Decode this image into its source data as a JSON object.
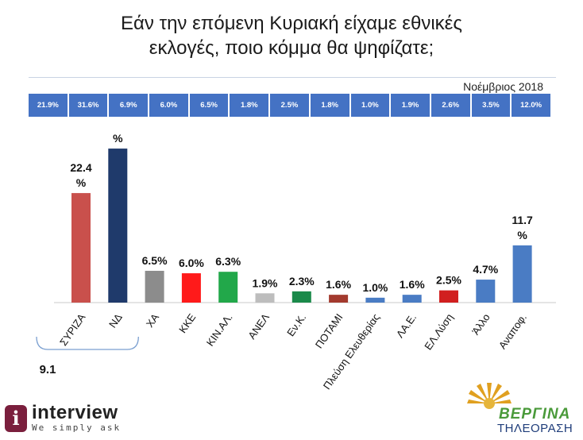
{
  "title_line1": "Εάν την επόμενη Κυριακή είχαμε εθνικές",
  "title_line2": "εκλογές, ποιο κόμμα θα ψηφίζατε;",
  "month": "Νοέμβριος 2018",
  "previous_results": [
    "21.9%",
    "31.6%",
    "6.9%",
    "6.0%",
    "6.5%",
    "1.8%",
    "2.5%",
    "1.8%",
    "1.0%",
    "1.9%",
    "2.6%",
    "3.5%",
    "12.0%"
  ],
  "chart_data": {
    "type": "bar",
    "categories": [
      "ΣΥΡΙΖΑ",
      "ΝΔ",
      "ΧΑ",
      "ΚΚΕ",
      "ΚΙΝ.ΑΛ.",
      "ΑΝΕΛ",
      "Εν.Κ.",
      "ΠΟΤΑΜΙ",
      "Πλεύση Ελευθερίας",
      "ΛΑ.Ε.",
      "ΕΛ.Λύση",
      "Άλλο",
      "Αναποφ."
    ],
    "values": [
      22.4,
      31.5,
      6.5,
      6.0,
      6.3,
      1.9,
      2.3,
      1.6,
      1.0,
      1.6,
      2.5,
      4.7,
      11.7
    ],
    "data_labels": [
      "22.4\n%",
      "%",
      "6.5%",
      "6.0%",
      "6.3%",
      "1.9%",
      "2.3%",
      "1.6%",
      "1.0%",
      "1.6%",
      "2.5%",
      "4.7%",
      "11.7\n%"
    ],
    "colors": [
      "#c9504c",
      "#1f3a6b",
      "#8c8c8c",
      "#ff1a1a",
      "#22a84a",
      "#bdbdbd",
      "#1a8a4a",
      "#a33a2e",
      "#4a7cc4",
      "#4a7cc4",
      "#d11f1f",
      "#4a7cc4",
      "#4a7cc4"
    ],
    "ylim": [
      0,
      32
    ],
    "bracket_label": "9.1"
  },
  "logos": {
    "interview_name": "interview",
    "interview_tag": "We simply ask",
    "vergina_name": "ΒΕΡΓΙΝΑ",
    "vergina_sub": "ΤΗΛΕΟΡΑΣΗ"
  }
}
